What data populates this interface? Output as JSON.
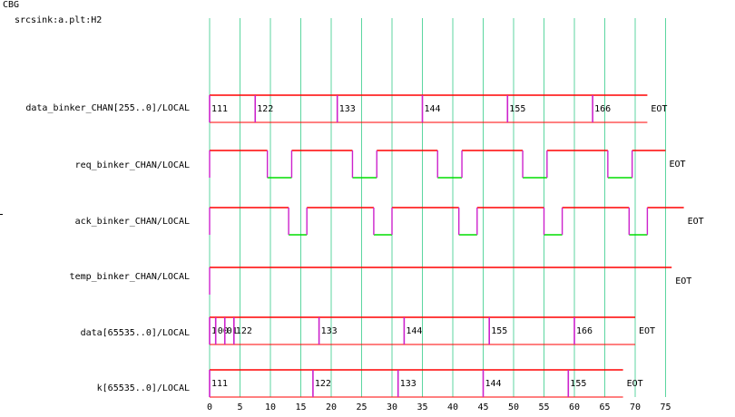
{
  "header": {
    "title": "CBG",
    "subtitle": "srcsink:a.plt:H2"
  },
  "axis": {
    "start": 0,
    "end": 78,
    "major_step": 5,
    "tick_labels": [
      "0",
      "5",
      "10",
      "15",
      "20",
      "25",
      "30",
      "35",
      "40",
      "45",
      "50",
      "55",
      "60",
      "65",
      "70",
      "75"
    ]
  },
  "colors": {
    "grid": "#5cd6a0",
    "high": "#ff0000",
    "low": "#00dd00",
    "transition": "#cc22cc",
    "bus": "#ff0000",
    "text": "#000000"
  },
  "signals": [
    {
      "name": "data_binker_CHAN[255..0]/LOCAL",
      "kind": "bus",
      "end": 72,
      "end_label": "EOT",
      "segments": [
        {
          "t": 0,
          "v": "111"
        },
        {
          "t": 7.5,
          "v": "122"
        },
        {
          "t": 21,
          "v": "133"
        },
        {
          "t": 35,
          "v": "144"
        },
        {
          "t": 49,
          "v": "155"
        },
        {
          "t": 63,
          "v": "166"
        }
      ]
    },
    {
      "name": "req_binker_CHAN/LOCAL",
      "kind": "bit",
      "end": 75,
      "end_label": "EOT",
      "changes": [
        {
          "t": 0,
          "v": 1
        },
        {
          "t": 9.5,
          "v": 0
        },
        {
          "t": 13.5,
          "v": 1
        },
        {
          "t": 23.5,
          "v": 0
        },
        {
          "t": 27.5,
          "v": 1
        },
        {
          "t": 37.5,
          "v": 0
        },
        {
          "t": 41.5,
          "v": 1
        },
        {
          "t": 51.5,
          "v": 0
        },
        {
          "t": 55.5,
          "v": 1
        },
        {
          "t": 65.5,
          "v": 0
        },
        {
          "t": 69.5,
          "v": 1
        }
      ]
    },
    {
      "name": "ack_binker_CHAN/LOCAL",
      "kind": "bit",
      "end": 78,
      "end_label": "EOT",
      "changes": [
        {
          "t": 0,
          "v": 1
        },
        {
          "t": 13,
          "v": 0
        },
        {
          "t": 16,
          "v": 1
        },
        {
          "t": 27,
          "v": 0
        },
        {
          "t": 30,
          "v": 1
        },
        {
          "t": 41,
          "v": 0
        },
        {
          "t": 44,
          "v": 1
        },
        {
          "t": 55,
          "v": 0
        },
        {
          "t": 58,
          "v": 1
        },
        {
          "t": 69,
          "v": 0
        },
        {
          "t": 72,
          "v": 1
        }
      ]
    },
    {
      "name": "temp_binker_CHAN/LOCAL",
      "kind": "bit",
      "end": 76,
      "end_label": "EOT",
      "changes": [
        {
          "t": 0,
          "v": 1
        }
      ]
    },
    {
      "name": "data[65535..0]/LOCAL",
      "kind": "bus",
      "end": 70,
      "end_label": "EOT",
      "segments": [
        {
          "t": 0,
          "v": "1"
        },
        {
          "t": 1,
          "v": "00"
        },
        {
          "t": 2.5,
          "v": "01"
        },
        {
          "t": 4,
          "v": "122"
        },
        {
          "t": 18,
          "v": "133"
        },
        {
          "t": 32,
          "v": "144"
        },
        {
          "t": 46,
          "v": "155"
        },
        {
          "t": 60,
          "v": "166"
        }
      ]
    },
    {
      "name": "k[65535..0]/LOCAL",
      "kind": "bus",
      "end": 68,
      "end_label": "EOT",
      "segments": [
        {
          "t": 0,
          "v": "111"
        },
        {
          "t": 17,
          "v": "122"
        },
        {
          "t": 31,
          "v": "133"
        },
        {
          "t": 45,
          "v": "144"
        },
        {
          "t": 59,
          "v": "155"
        }
      ]
    }
  ]
}
